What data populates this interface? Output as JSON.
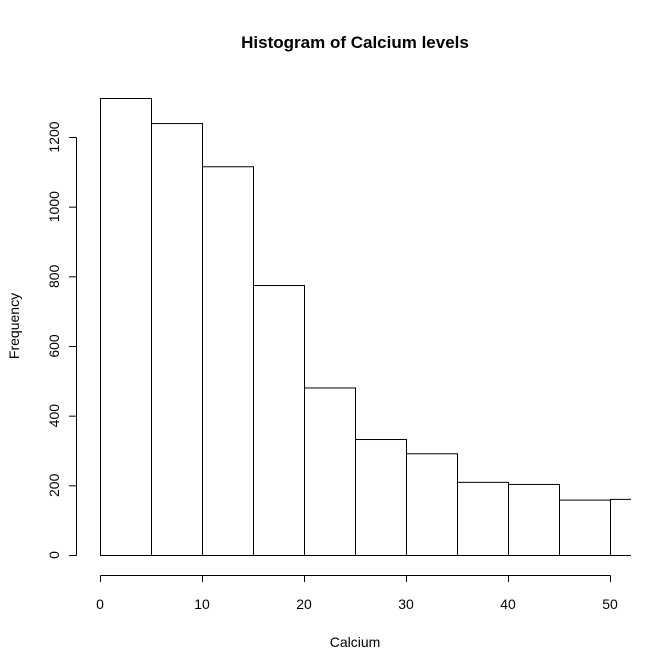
{
  "chart_data": {
    "type": "bar",
    "title": "Histogram of Calcium levels",
    "xlabel": "Calcium",
    "ylabel": "Frequency",
    "bin_edges": [
      0,
      5,
      10,
      15,
      20,
      25,
      30,
      35,
      40,
      45,
      50,
      55
    ],
    "values": [
      1312,
      1240,
      1116,
      775,
      481,
      333,
      292,
      210,
      204,
      159,
      161
    ],
    "x_ticks": [
      0,
      10,
      20,
      30,
      40,
      50
    ],
    "y_ticks": [
      0,
      200,
      400,
      600,
      800,
      1000,
      1200
    ],
    "xlim": [
      0,
      50
    ],
    "ylim": [
      0,
      1300
    ],
    "grid": false
  }
}
